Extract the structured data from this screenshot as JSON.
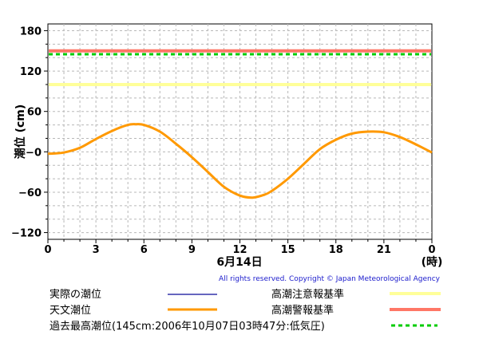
{
  "chart_data": {
    "type": "line",
    "ylabel": "潮位 (cm)",
    "xlabel": "6月14日",
    "x_unit": "(時)",
    "x_ticks": [
      "0",
      "3",
      "6",
      "9",
      "12",
      "15",
      "18",
      "21",
      "0"
    ],
    "y_ticks": [
      "180",
      "120",
      "60",
      "−0",
      "−60",
      "−120"
    ],
    "y_tick_values": [
      180,
      120,
      60,
      0,
      -60,
      -120
    ],
    "xlim": [
      0,
      24
    ],
    "ylim": [
      -130,
      190
    ],
    "grid": true,
    "reference_lines": [
      {
        "name": "高潮注意報基準",
        "value": 100,
        "color": "#ffff99",
        "style": "solid"
      },
      {
        "name": "高潮警報基準",
        "value": 150,
        "color": "#ff7766",
        "style": "solid"
      },
      {
        "name": "過去最高潮位(145cm:2006年10月07日03時47分:低気圧)",
        "value": 145,
        "color": "#00cc00",
        "style": "dashed"
      }
    ],
    "series": [
      {
        "name": "実際の潮位",
        "color": "#3333aa",
        "x": [],
        "y": []
      },
      {
        "name": "天文潮位",
        "color": "#ff9900",
        "x": [
          0,
          1,
          2,
          3,
          4,
          5,
          5.5,
          6,
          7,
          8,
          9,
          10,
          11,
          12,
          12.8,
          13.5,
          14,
          15,
          16,
          17,
          18,
          19,
          20,
          21,
          22,
          23,
          24
        ],
        "y": [
          -3,
          -1,
          6,
          19,
          31,
          40,
          41,
          40,
          30,
          12,
          -8,
          -30,
          -52,
          -65,
          -68,
          -64,
          -58,
          -40,
          -18,
          4,
          18,
          27,
          30,
          29,
          22,
          11,
          -1
        ]
      }
    ]
  },
  "copyright": "All rights reserved. Copyright © Japan Meteorological Agency",
  "legend": {
    "actual": "実際の潮位",
    "astronomical": "天文潮位",
    "advisory": "高潮注意報基準",
    "warning": "高潮警報基準",
    "record": "過去最高潮位(145cm:2006年10月07日03時47分:低気圧)"
  }
}
